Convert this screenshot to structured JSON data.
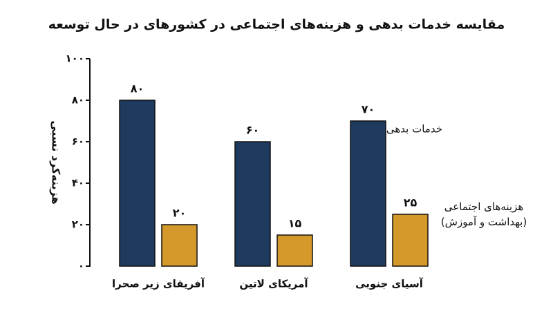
{
  "chart_data": {
    "type": "bar",
    "title": "مقایسه خدمات بدهی و هزینه‌های اجتماعی در کشورهای در حال توسعه",
    "y_label": "هزینه‌کرد نسبی",
    "categories": [
      "آفریقای زیر صحرا",
      "آمریکای لاتین",
      "آسیای جنوبی"
    ],
    "series": [
      {
        "name": "خدمات بدهی",
        "color": "#1f3a5f",
        "values": [
          80,
          60,
          70
        ],
        "value_labels": [
          "۸۰",
          "۶۰",
          "۷۰"
        ]
      },
      {
        "name": "هزینه‌های اجتماعی (بهداشت و آموزش)",
        "color": "#d4992a",
        "values": [
          20,
          15,
          25
        ],
        "value_labels": [
          "۲۰",
          "۱۵",
          "۲۵"
        ]
      }
    ],
    "ylim": [
      0,
      100
    ],
    "yticks": [
      {
        "value": 0,
        "label": "۰"
      },
      {
        "value": 20,
        "label": "۲۰"
      },
      {
        "value": 40,
        "label": "۴۰"
      },
      {
        "value": 60,
        "label": "۶۰"
      },
      {
        "value": 80,
        "label": "۸۰"
      },
      {
        "value": 100,
        "label": "۱۰۰"
      }
    ],
    "grid": false
  }
}
